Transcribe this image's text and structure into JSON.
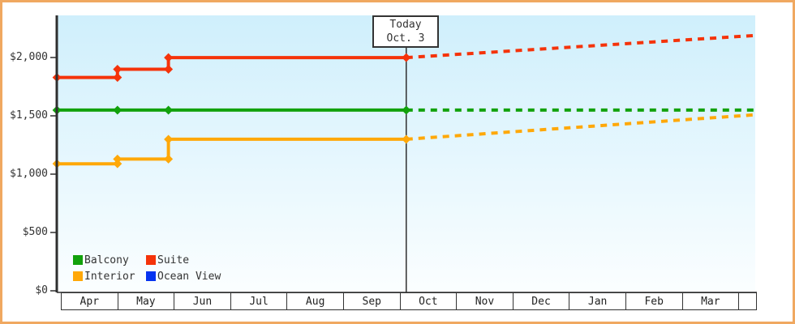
{
  "colors": {
    "frame_border": "#f0a860",
    "axis": "#2f2f2f",
    "plot_bg_top": "#cfeffc",
    "plot_bg_bottom": "#fbfeff",
    "text": "#333333"
  },
  "chart_data": {
    "type": "line",
    "description_style": "stepped price history (solid) with forecast (dashed) per cabin type",
    "x_categories": [
      "Apr",
      "May",
      "Jun",
      "Jul",
      "Aug",
      "Sep",
      "Oct",
      "Nov",
      "Dec",
      "Jan",
      "Feb",
      "Mar"
    ],
    "y_ticks": [
      {
        "value": 0,
        "label": "$0"
      },
      {
        "value": 500,
        "label": "$500"
      },
      {
        "value": 1000,
        "label": "$1,000"
      },
      {
        "value": 1500,
        "label": "$1,500"
      },
      {
        "value": 2000,
        "label": "$2,000"
      }
    ],
    "ylim": [
      0,
      2370
    ],
    "xlim_months": [
      -0.07,
      12.26
    ],
    "grid": false,
    "legend_position": "bottom-left-inside",
    "today": {
      "label": "Today",
      "date": "Oct. 3",
      "x": 6.1
    },
    "series": [
      {
        "name": "Balcony",
        "color": "#12a10c",
        "actual": [
          [
            -0.07,
            1549
          ],
          [
            1,
            1549
          ],
          [
            1.9,
            1549
          ],
          [
            6.1,
            1549
          ]
        ],
        "forecast": [
          [
            6.1,
            1549
          ],
          [
            12.26,
            1549
          ]
        ]
      },
      {
        "name": "Suite",
        "color": "#f5330a",
        "actual": [
          [
            -0.07,
            1829
          ],
          [
            1,
            1829
          ],
          [
            1,
            1899
          ],
          [
            1.9,
            1899
          ],
          [
            1.9,
            1999
          ],
          [
            6.1,
            1999
          ]
        ],
        "forecast": [
          [
            6.1,
            1999
          ],
          [
            12.26,
            2189
          ]
        ]
      },
      {
        "name": "Interior",
        "color": "#ffa808",
        "actual": [
          [
            -0.07,
            1089
          ],
          [
            1,
            1089
          ],
          [
            1,
            1129
          ],
          [
            1.9,
            1129
          ],
          [
            1.9,
            1299
          ],
          [
            6.1,
            1299
          ]
        ],
        "forecast": [
          [
            6.1,
            1299
          ],
          [
            12.26,
            1509
          ]
        ]
      },
      {
        "name": "Ocean View",
        "color": "#0533f0",
        "actual": [],
        "forecast": []
      }
    ]
  }
}
